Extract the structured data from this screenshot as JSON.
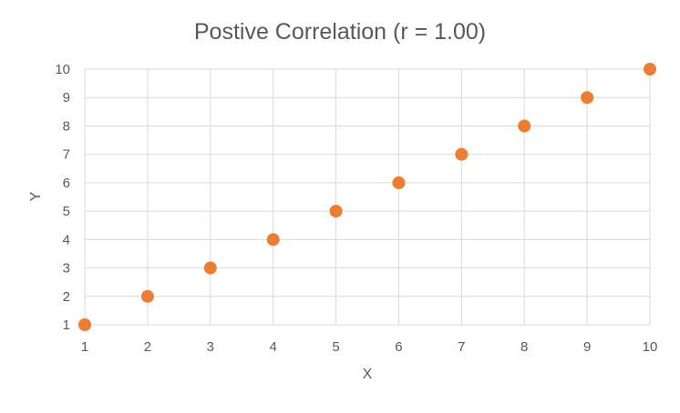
{
  "chart_data": {
    "type": "scatter",
    "title": "Postive Correlation (r = 1.00)",
    "xlabel": "X",
    "ylabel": "Y",
    "xlim": [
      1,
      10
    ],
    "ylim": [
      1,
      10
    ],
    "xticks": [
      "1",
      "2",
      "3",
      "4",
      "5",
      "6",
      "7",
      "8",
      "9",
      "10"
    ],
    "yticks": [
      "1",
      "2",
      "3",
      "4",
      "5",
      "6",
      "7",
      "8",
      "9",
      "10"
    ],
    "grid": true,
    "legend": "none",
    "series": [
      {
        "color": "#ed7d31",
        "points": [
          {
            "x": 1,
            "y": 1
          },
          {
            "x": 2,
            "y": 2
          },
          {
            "x": 3,
            "y": 3
          },
          {
            "x": 4,
            "y": 4
          },
          {
            "x": 5,
            "y": 5
          },
          {
            "x": 6,
            "y": 6
          },
          {
            "x": 7,
            "y": 7
          },
          {
            "x": 8,
            "y": 8
          },
          {
            "x": 9,
            "y": 9
          },
          {
            "x": 10,
            "y": 10
          }
        ]
      }
    ]
  }
}
